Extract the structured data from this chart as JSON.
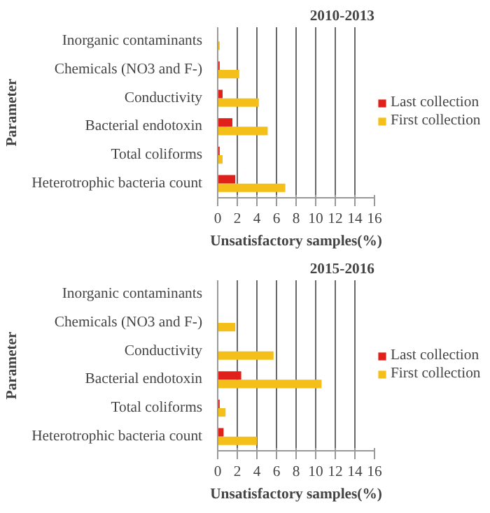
{
  "chart_data": [
    {
      "type": "bar",
      "orientation": "horizontal",
      "title": "2010-2013",
      "xlabel": "Unsatisfactory samples(%)",
      "ylabel": "Parameter",
      "categories": [
        "Inorganic contaminants",
        "Chemicals (NO3 and F-)",
        "Conductivity",
        "Bacterial endotoxin",
        "Total coliforms",
        "Heterotrophic bacteria count"
      ],
      "series": [
        {
          "name": "Last collection",
          "color": "#e0201b",
          "values": [
            0,
            0.2,
            0.5,
            1.5,
            0.2,
            1.8
          ]
        },
        {
          "name": "First collection",
          "color": "#f5bf1a",
          "values": [
            0.2,
            2.2,
            4.2,
            5.1,
            0.5,
            6.9
          ]
        }
      ],
      "xlim": [
        0,
        16
      ],
      "xticks": [
        0,
        2,
        4,
        6,
        8,
        10,
        12,
        14,
        16
      ],
      "grid": "x",
      "legend": "right"
    },
    {
      "type": "bar",
      "orientation": "horizontal",
      "title": "2015-2016",
      "xlabel": "Unsatisfactory samples(%)",
      "ylabel": "Parameter",
      "categories": [
        "Inorganic contaminants",
        "Chemicals (NO3 and F-)",
        "Conductivity",
        "Bacterial endotoxin",
        "Total coliforms",
        "Heterotrophic bacteria count"
      ],
      "series": [
        {
          "name": "Last collection",
          "color": "#e0201b",
          "values": [
            0,
            0,
            0,
            2.4,
            0.2,
            0.6
          ]
        },
        {
          "name": "First collection",
          "color": "#f5bf1a",
          "values": [
            0,
            1.8,
            5.7,
            10.6,
            0.8,
            4.0
          ]
        }
      ],
      "xlim": [
        0,
        16
      ],
      "xticks": [
        0,
        2,
        4,
        6,
        8,
        10,
        12,
        14,
        16
      ],
      "grid": "x",
      "legend": "right"
    }
  ]
}
